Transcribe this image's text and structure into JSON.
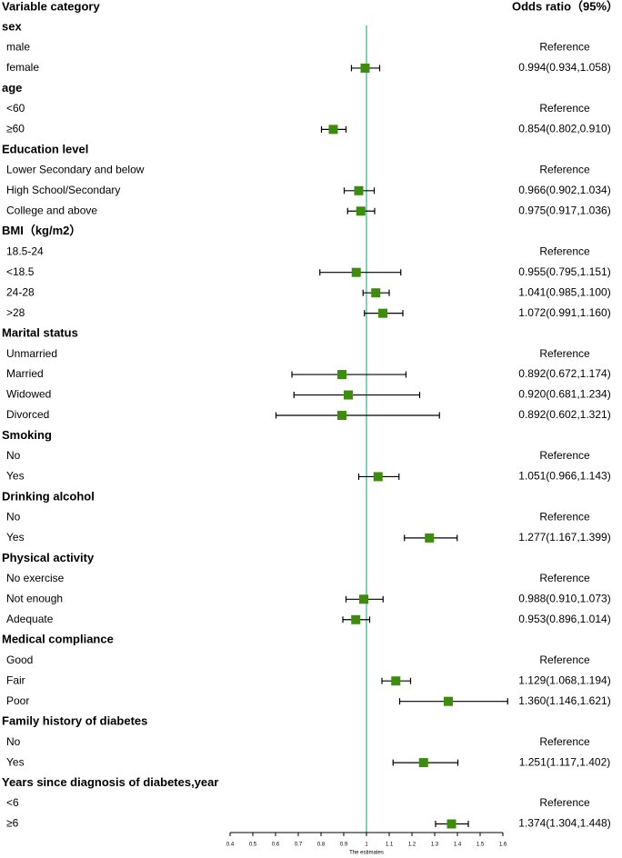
{
  "chart_data": {
    "type": "forest",
    "title_left": "Variable category",
    "title_right": "Odds ratio（95%）",
    "x_label": "The estimates",
    "xlim": [
      0.4,
      1.6
    ],
    "xticks": [
      0.4,
      0.5,
      0.6,
      0.7,
      0.8,
      0.9,
      1,
      1.1,
      1.2,
      1.3,
      1.4,
      1.5,
      1.6
    ],
    "ref_line": 1,
    "color": "#3d8c0c",
    "ref_line_color": "#5cbfae",
    "groups": [
      {
        "name": "sex",
        "items": [
          {
            "name": "male",
            "label": "Reference"
          },
          {
            "name": "female",
            "value": 0.994,
            "lower": 0.934,
            "upper": 1.058,
            "label": "0.994(0.934,1.058)"
          }
        ]
      },
      {
        "name": "age",
        "items": [
          {
            "name": "<60",
            "label": "Reference"
          },
          {
            "name": "≥60",
            "value": 0.854,
            "lower": 0.802,
            "upper": 0.91,
            "label": "0.854(0.802,0.910)"
          }
        ]
      },
      {
        "name": "Education level",
        "items": [
          {
            "name": "Lower Secondary and below",
            "label": "Reference"
          },
          {
            "name": "High School/Secondary",
            "value": 0.966,
            "lower": 0.902,
            "upper": 1.034,
            "label": "0.966(0.902,1.034)"
          },
          {
            "name": "College and above",
            "value": 0.975,
            "lower": 0.917,
            "upper": 1.036,
            "label": "0.975(0.917,1.036)"
          }
        ]
      },
      {
        "name": "BMI（kg/m2）",
        "items": [
          {
            "name": "18.5-24",
            "label": "Reference"
          },
          {
            "name": "<18.5",
            "value": 0.955,
            "lower": 0.795,
            "upper": 1.151,
            "label": "0.955(0.795,1.151)"
          },
          {
            "name": "24-28",
            "value": 1.041,
            "lower": 0.985,
            "upper": 1.1,
            "label": "1.041(0.985,1.100)"
          },
          {
            "name": ">28",
            "value": 1.072,
            "lower": 0.991,
            "upper": 1.16,
            "label": "1.072(0.991,1.160)"
          }
        ]
      },
      {
        "name": "Marital status",
        "items": [
          {
            "name": "Unmarried",
            "label": "Reference"
          },
          {
            "name": "Married",
            "value": 0.892,
            "lower": 0.672,
            "upper": 1.174,
            "label": "0.892(0.672,1.174)"
          },
          {
            "name": "Widowed",
            "value": 0.92,
            "lower": 0.681,
            "upper": 1.234,
            "label": "0.920(0.681,1.234)"
          },
          {
            "name": "Divorced",
            "value": 0.892,
            "lower": 0.602,
            "upper": 1.321,
            "label": "0.892(0.602,1.321)"
          }
        ]
      },
      {
        "name": "Smoking",
        "items": [
          {
            "name": "No",
            "label": "Reference"
          },
          {
            "name": "Yes",
            "value": 1.051,
            "lower": 0.966,
            "upper": 1.143,
            "label": "1.051(0.966,1.143)"
          }
        ]
      },
      {
        "name": "Drinking alcohol",
        "items": [
          {
            "name": "No",
            "label": "Reference"
          },
          {
            "name": "Yes",
            "value": 1.277,
            "lower": 1.167,
            "upper": 1.399,
            "label": "1.277(1.167,1.399)"
          }
        ]
      },
      {
        "name": "Physical activity",
        "items": [
          {
            "name": "No exercise",
            "label": "Reference"
          },
          {
            "name": "Not enough",
            "value": 0.988,
            "lower": 0.91,
            "upper": 1.073,
            "label": "0.988(0.910,1.073)"
          },
          {
            "name": "Adequate",
            "value": 0.953,
            "lower": 0.896,
            "upper": 1.014,
            "label": "0.953(0.896,1.014)"
          }
        ]
      },
      {
        "name": "Medical compliance",
        "items": [
          {
            "name": "Good",
            "label": "Reference"
          },
          {
            "name": "Fair",
            "value": 1.129,
            "lower": 1.068,
            "upper": 1.194,
            "label": "1.129(1.068,1.194)"
          },
          {
            "name": "Poor",
            "value": 1.36,
            "lower": 1.146,
            "upper": 1.621,
            "label": "1.360(1.146,1.621)"
          }
        ]
      },
      {
        "name": "Family history of diabetes",
        "items": [
          {
            "name": "No",
            "label": "Reference"
          },
          {
            "name": "Yes",
            "value": 1.251,
            "lower": 1.117,
            "upper": 1.402,
            "label": "1.251(1.117,1.402)"
          }
        ]
      },
      {
        "name": "Years since diagnosis of diabetes,year",
        "items": [
          {
            "name": "<6",
            "label": "Reference"
          },
          {
            "name": "≥6",
            "value": 1.374,
            "lower": 1.304,
            "upper": 1.448,
            "label": "1.374(1.304,1.448)"
          }
        ]
      }
    ]
  }
}
